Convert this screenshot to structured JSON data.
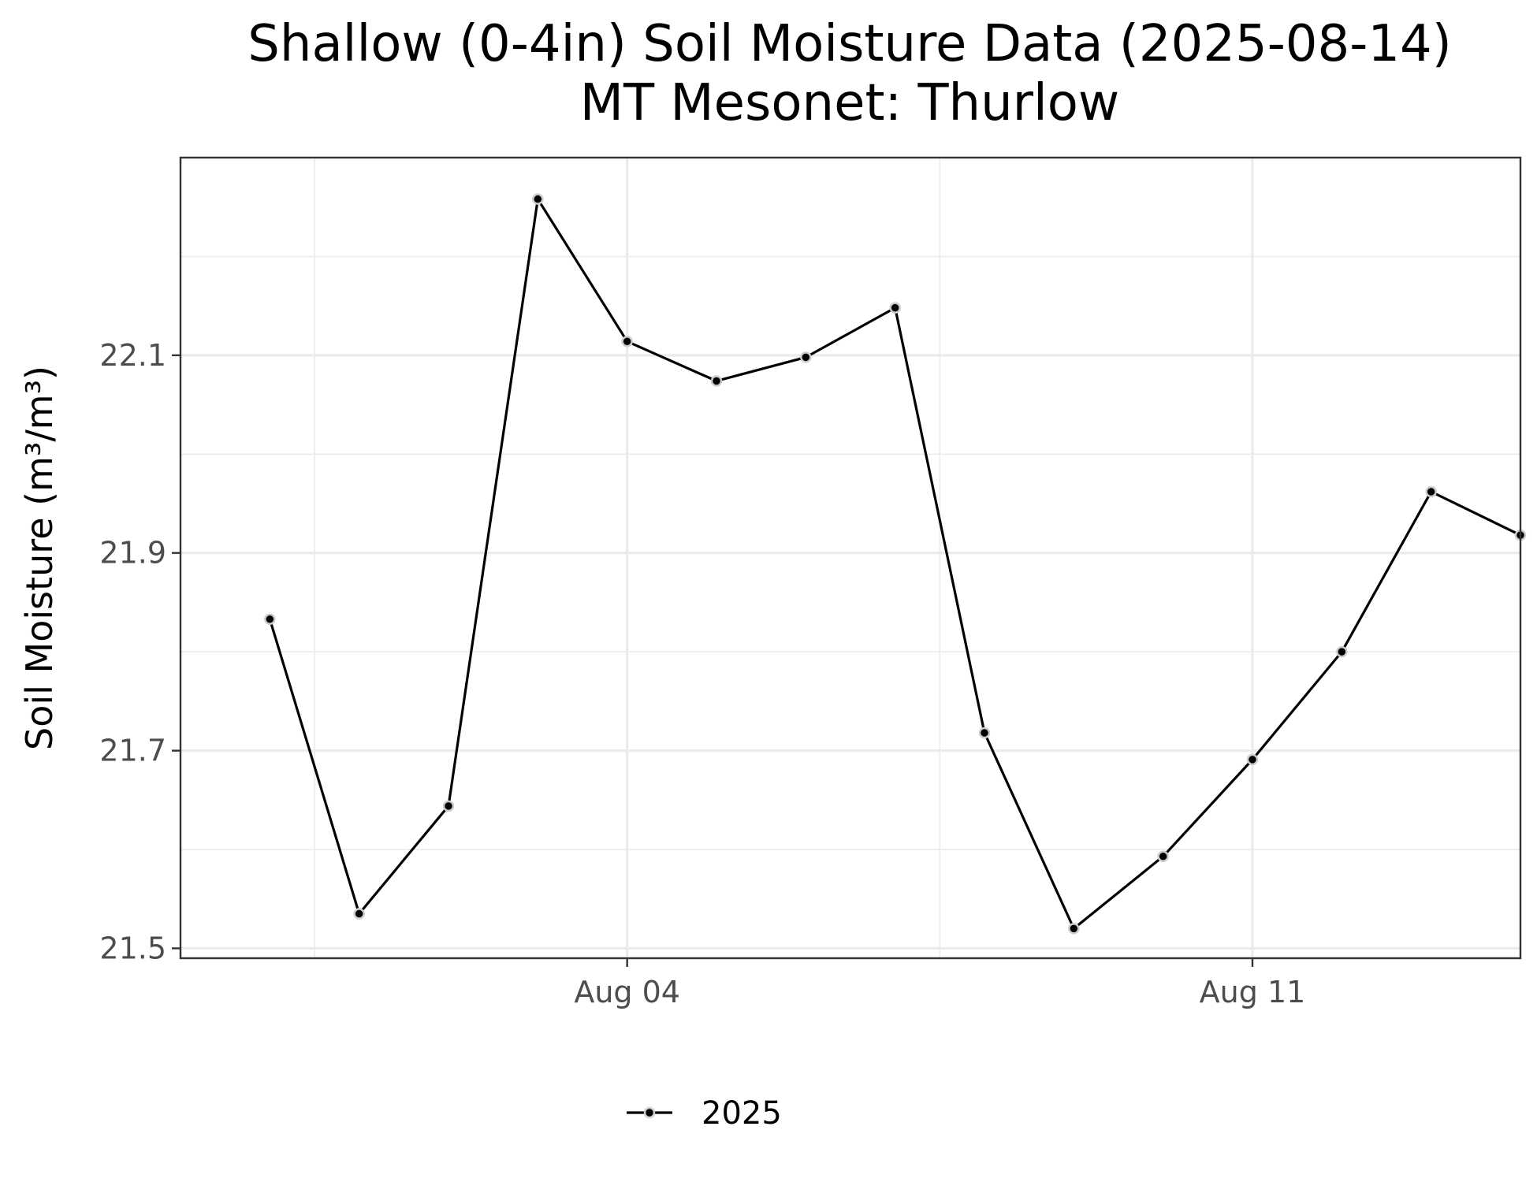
{
  "chart_data": {
    "type": "line",
    "title": "Shallow (0-4in) Soil Moisture Data (2025-08-14)",
    "subtitle": "MT Mesonet: Thurlow",
    "xlabel": "",
    "ylabel": "Soil Moisture (m³/m³)",
    "x_range": [
      "2025-07-30",
      "2025-08-14"
    ],
    "x_ticks": [
      {
        "date": "2025-08-04",
        "label": "Aug 04"
      },
      {
        "date": "2025-08-11",
        "label": "Aug 11"
      }
    ],
    "ylim": [
      21.49,
      22.3
    ],
    "y_ticks": [
      21.5,
      21.7,
      21.9,
      22.1
    ],
    "grid": true,
    "legend_position": "bottom",
    "series": [
      {
        "name": "2025",
        "color": "#000000",
        "points": [
          {
            "x": "2025-07-31",
            "y": 21.833
          },
          {
            "x": "2025-08-01",
            "y": 21.535
          },
          {
            "x": "2025-08-02",
            "y": 21.644
          },
          {
            "x": "2025-08-03",
            "y": 22.258
          },
          {
            "x": "2025-08-04",
            "y": 22.114
          },
          {
            "x": "2025-08-05",
            "y": 22.074
          },
          {
            "x": "2025-08-06",
            "y": 22.098
          },
          {
            "x": "2025-08-07",
            "y": 22.148
          },
          {
            "x": "2025-08-08",
            "y": 21.718
          },
          {
            "x": "2025-08-09",
            "y": 21.52
          },
          {
            "x": "2025-08-10",
            "y": 21.593
          },
          {
            "x": "2025-08-11",
            "y": 21.691
          },
          {
            "x": "2025-08-12",
            "y": 21.8
          },
          {
            "x": "2025-08-13",
            "y": 21.962
          },
          {
            "x": "2025-08-14",
            "y": 21.918
          }
        ]
      }
    ]
  }
}
